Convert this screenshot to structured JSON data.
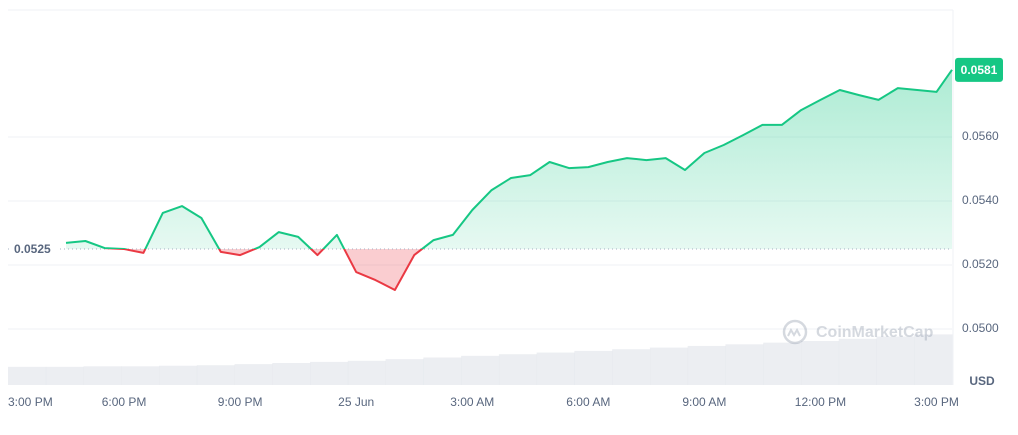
{
  "chart_data": {
    "type": "line",
    "x": [
      1.5,
      2,
      2.5,
      3,
      3.5,
      4,
      4.5,
      5,
      5.5,
      6,
      6.5,
      7,
      7.5,
      8,
      8.5,
      9,
      9.5,
      10,
      10.5,
      11,
      11.5,
      12,
      12.5,
      13,
      13.5,
      14,
      14.5,
      15,
      15.5,
      16,
      16.5,
      17,
      17.5,
      18,
      18.5,
      19,
      19.5,
      20,
      20.5,
      21,
      21.5,
      22,
      22.5,
      23,
      23.5,
      24,
      24.4
    ],
    "series": [
      {
        "values": [
          0.05269,
          0.05275,
          0.05253,
          0.0525,
          0.05238,
          0.05363,
          0.05384,
          0.05347,
          0.05241,
          0.05231,
          0.05256,
          0.05303,
          0.05288,
          0.05231,
          0.05294,
          0.05178,
          0.05153,
          0.05122,
          0.05231,
          0.05278,
          0.05294,
          0.05372,
          0.05434,
          0.05472,
          0.05481,
          0.05522,
          0.05503,
          0.05506,
          0.05522,
          0.05534,
          0.05528,
          0.05534,
          0.05497,
          0.0555,
          0.05575,
          0.05606,
          0.05638,
          0.05638,
          0.05684,
          0.05716,
          0.05747,
          0.05731,
          0.05716,
          0.05753,
          0.05747,
          0.05741,
          0.0581
        ],
        "color_up": "#16c784",
        "color_down": "#ea3943"
      }
    ],
    "baseline": 0.0525,
    "xlim": [
      0,
      24.4
    ],
    "xticks": [
      {
        "value": 0,
        "label": "3:00 PM"
      },
      {
        "value": 3,
        "label": "6:00 PM"
      },
      {
        "value": 6,
        "label": "9:00 PM"
      },
      {
        "value": 9,
        "label": "25 Jun"
      },
      {
        "value": 12,
        "label": "3:00 AM"
      },
      {
        "value": 15,
        "label": "6:00 AM"
      },
      {
        "value": 18,
        "label": "9:00 AM"
      },
      {
        "value": 21,
        "label": "12:00 PM"
      },
      {
        "value": 24,
        "label": "3:00 PM"
      }
    ],
    "ylim": [
      0.04825,
      0.05997
    ],
    "yticks": [
      {
        "value": 0.05,
        "label": "0.0500"
      },
      {
        "value": 0.052,
        "label": "0.0520"
      },
      {
        "value": 0.054,
        "label": "0.0540"
      },
      {
        "value": 0.056,
        "label": "0.0560"
      }
    ],
    "currency": "USD",
    "watermark": "CoinMarketCap",
    "volume": {
      "values": [
        33,
        33,
        34,
        34,
        35,
        36,
        38,
        40,
        42,
        44,
        47,
        50,
        53,
        56,
        59,
        62,
        65,
        68,
        71,
        74,
        77,
        80,
        84,
        88,
        92
      ],
      "ylim": [
        0,
        100
      ],
      "color": "#e4e7ec"
    },
    "grid": true
  }
}
